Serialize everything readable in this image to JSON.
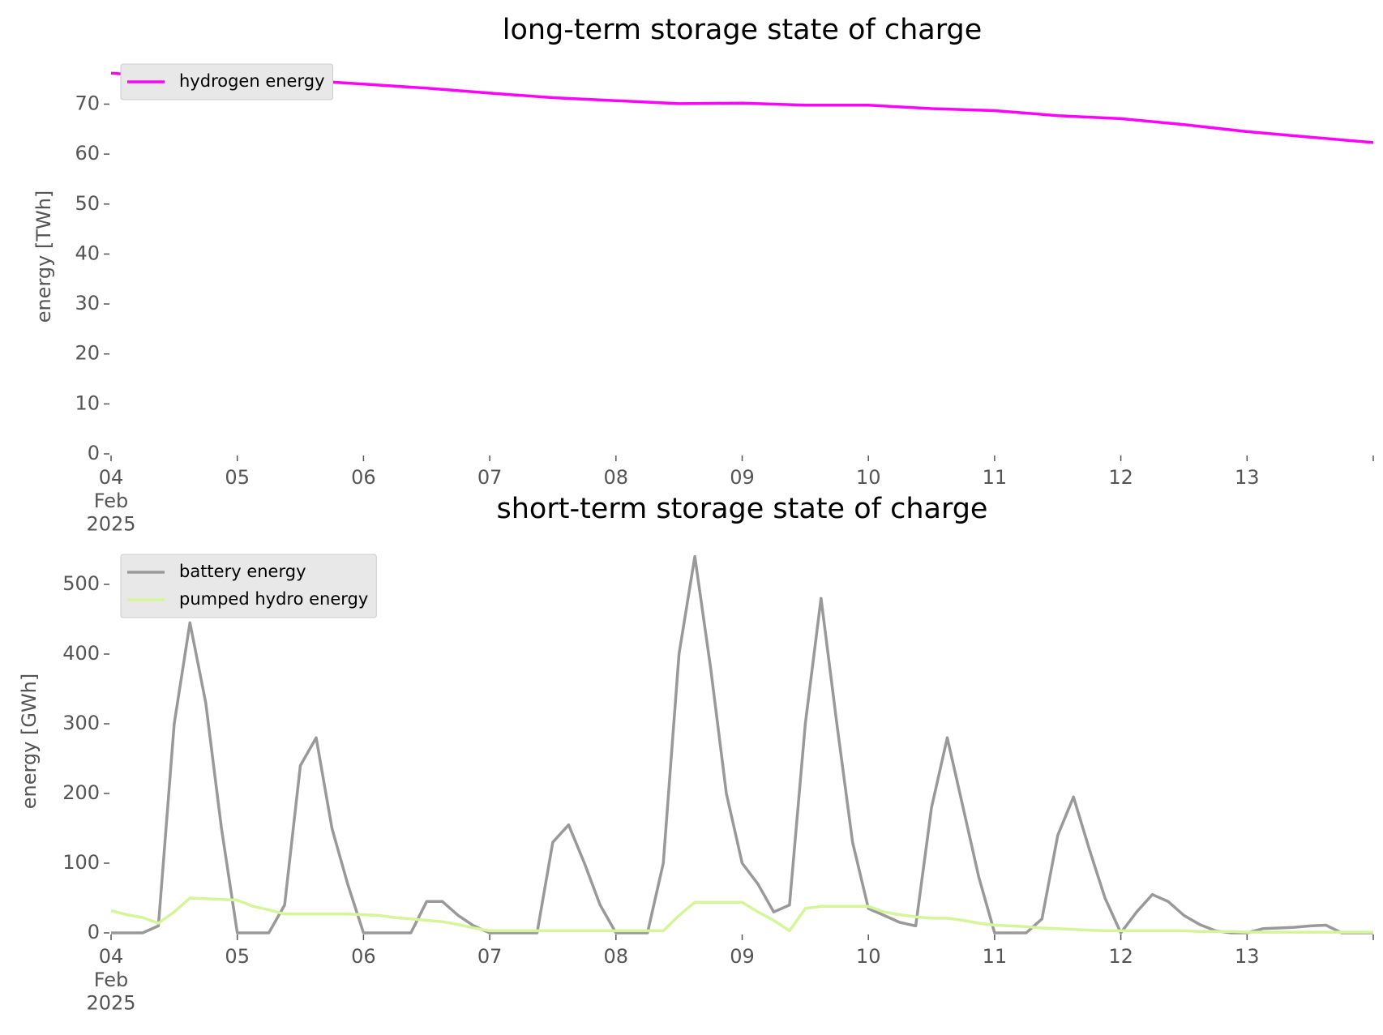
{
  "chart_data": [
    {
      "type": "line",
      "title": "long-term storage state of charge",
      "ylabel": "energy [TWh]",
      "x": [
        "2025-02-04 00:00",
        "2025-02-04 12:00",
        "2025-02-05 00:00",
        "2025-02-05 12:00",
        "2025-02-06 00:00",
        "2025-02-06 12:00",
        "2025-02-07 00:00",
        "2025-02-07 12:00",
        "2025-02-08 00:00",
        "2025-02-08 12:00",
        "2025-02-09 00:00",
        "2025-02-09 12:00",
        "2025-02-10 00:00",
        "2025-02-10 12:00",
        "2025-02-11 00:00",
        "2025-02-11 12:00",
        "2025-02-12 00:00",
        "2025-02-12 12:00",
        "2025-02-13 00:00",
        "2025-02-13 12:00",
        "2025-02-14 00:00"
      ],
      "series": [
        {
          "name": "hydrogen energy",
          "color": "#ff00ff",
          "values": [
            76.2,
            75.3,
            75.0,
            74.8,
            74.0,
            73.2,
            72.2,
            71.3,
            70.7,
            70.1,
            70.2,
            69.8,
            69.8,
            69.1,
            68.7,
            67.7,
            67.1,
            65.9,
            64.5,
            63.4,
            62.3
          ]
        }
      ],
      "xlim": [
        "2025-02-04 00:00",
        "2025-02-14 00:00"
      ],
      "xticks": [
        {
          "value": "2025-02-04 00:00",
          "label": "04\nFeb\n2025"
        },
        {
          "value": "2025-02-05 00:00",
          "label": "05"
        },
        {
          "value": "2025-02-06 00:00",
          "label": "06"
        },
        {
          "value": "2025-02-07 00:00",
          "label": "07"
        },
        {
          "value": "2025-02-08 00:00",
          "label": "08"
        },
        {
          "value": "2025-02-09 00:00",
          "label": "09"
        },
        {
          "value": "2025-02-10 00:00",
          "label": "10"
        },
        {
          "value": "2025-02-11 00:00",
          "label": "11"
        },
        {
          "value": "2025-02-12 00:00",
          "label": "12"
        },
        {
          "value": "2025-02-13 00:00",
          "label": "13"
        }
      ],
      "ylim": [
        0,
        79
      ],
      "yticks": [
        0,
        10,
        20,
        30,
        40,
        50,
        60,
        70
      ],
      "legend": "upper left"
    },
    {
      "type": "line",
      "title": "short-term storage state of charge",
      "ylabel": "energy [GWh]",
      "x": [
        "2025-02-04 00:00",
        "2025-02-04 03:00",
        "2025-02-04 06:00",
        "2025-02-04 09:00",
        "2025-02-04 12:00",
        "2025-02-04 15:00",
        "2025-02-04 18:00",
        "2025-02-04 21:00",
        "2025-02-05 00:00",
        "2025-02-05 03:00",
        "2025-02-05 06:00",
        "2025-02-05 09:00",
        "2025-02-05 12:00",
        "2025-02-05 15:00",
        "2025-02-05 18:00",
        "2025-02-05 21:00",
        "2025-02-06 00:00",
        "2025-02-06 03:00",
        "2025-02-06 06:00",
        "2025-02-06 09:00",
        "2025-02-06 12:00",
        "2025-02-06 15:00",
        "2025-02-06 18:00",
        "2025-02-06 21:00",
        "2025-02-07 00:00",
        "2025-02-07 03:00",
        "2025-02-07 06:00",
        "2025-02-07 09:00",
        "2025-02-07 12:00",
        "2025-02-07 15:00",
        "2025-02-07 18:00",
        "2025-02-07 21:00",
        "2025-02-08 00:00",
        "2025-02-08 03:00",
        "2025-02-08 06:00",
        "2025-02-08 09:00",
        "2025-02-08 12:00",
        "2025-02-08 15:00",
        "2025-02-08 18:00",
        "2025-02-08 21:00",
        "2025-02-09 00:00",
        "2025-02-09 03:00",
        "2025-02-09 06:00",
        "2025-02-09 09:00",
        "2025-02-09 12:00",
        "2025-02-09 15:00",
        "2025-02-09 18:00",
        "2025-02-09 21:00",
        "2025-02-10 00:00",
        "2025-02-10 03:00",
        "2025-02-10 06:00",
        "2025-02-10 09:00",
        "2025-02-10 12:00",
        "2025-02-10 15:00",
        "2025-02-10 18:00",
        "2025-02-10 21:00",
        "2025-02-11 00:00",
        "2025-02-11 03:00",
        "2025-02-11 06:00",
        "2025-02-11 09:00",
        "2025-02-11 12:00",
        "2025-02-11 15:00",
        "2025-02-11 18:00",
        "2025-02-11 21:00",
        "2025-02-12 00:00",
        "2025-02-12 03:00",
        "2025-02-12 06:00",
        "2025-02-12 09:00",
        "2025-02-12 12:00",
        "2025-02-12 15:00",
        "2025-02-12 18:00",
        "2025-02-12 21:00",
        "2025-02-13 00:00",
        "2025-02-13 03:00",
        "2025-02-13 06:00",
        "2025-02-13 09:00",
        "2025-02-13 12:00",
        "2025-02-13 15:00",
        "2025-02-13 18:00",
        "2025-02-13 21:00",
        "2025-02-14 00:00"
      ],
      "series": [
        {
          "name": "battery energy",
          "color": "#999999",
          "values": [
            0,
            0,
            0,
            10,
            300,
            445,
            330,
            150,
            0,
            0,
            0,
            40,
            240,
            280,
            150,
            70,
            0,
            0,
            0,
            0,
            45,
            45,
            25,
            10,
            0,
            0,
            0,
            0,
            130,
            155,
            100,
            40,
            0,
            0,
            0,
            100,
            400,
            540,
            380,
            200,
            100,
            70,
            30,
            40,
            300,
            480,
            300,
            130,
            35,
            25,
            15,
            10,
            180,
            280,
            180,
            80,
            0,
            0,
            0,
            20,
            140,
            195,
            120,
            50,
            0,
            30,
            55,
            45,
            25,
            12,
            3,
            0,
            0,
            6,
            7,
            8,
            10,
            11,
            0,
            0,
            0
          ]
        },
        {
          "name": "pumped hydro energy",
          "color": "#d4f59a",
          "values": [
            32,
            26,
            22,
            14,
            30,
            50,
            49,
            48,
            47,
            38,
            33,
            27,
            27,
            27,
            27,
            27,
            26,
            25,
            22,
            20,
            18,
            16,
            12,
            7,
            3,
            3,
            3,
            3,
            3,
            3,
            3,
            3,
            3,
            3,
            3,
            3,
            25,
            44,
            44,
            44,
            44,
            30,
            18,
            3,
            35,
            38,
            38,
            38,
            38,
            30,
            26,
            23,
            21,
            21,
            18,
            14,
            11,
            10,
            9,
            7,
            6,
            5,
            4,
            3,
            3,
            3,
            3,
            3,
            3,
            2,
            2,
            2,
            1,
            1,
            1,
            1,
            1,
            1,
            1,
            1,
            1
          ]
        }
      ],
      "xlim": [
        "2025-02-04 00:00",
        "2025-02-14 00:00"
      ],
      "xticks": [
        {
          "value": "2025-02-04 00:00",
          "label": "04\nFeb\n2025"
        },
        {
          "value": "2025-02-05 00:00",
          "label": "05"
        },
        {
          "value": "2025-02-06 00:00",
          "label": "06"
        },
        {
          "value": "2025-02-07 00:00",
          "label": "07"
        },
        {
          "value": "2025-02-08 00:00",
          "label": "08"
        },
        {
          "value": "2025-02-09 00:00",
          "label": "09"
        },
        {
          "value": "2025-02-10 00:00",
          "label": "10"
        },
        {
          "value": "2025-02-11 00:00",
          "label": "11"
        },
        {
          "value": "2025-02-12 00:00",
          "label": "12"
        },
        {
          "value": "2025-02-13 00:00",
          "label": "13"
        }
      ],
      "ylim": [
        0,
        550
      ],
      "yticks": [
        0,
        100,
        200,
        300,
        400,
        500
      ],
      "legend": "upper left"
    }
  ]
}
